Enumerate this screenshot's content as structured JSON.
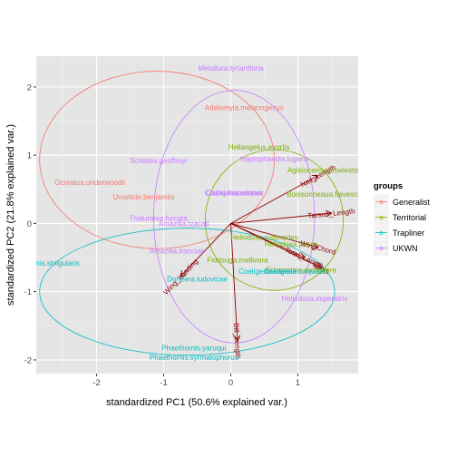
{
  "chart_data": {
    "type": "scatter",
    "subtype": "pca-biplot",
    "xlabel": "standardized PC1 (50.6% explained var.)",
    "ylabel": "standardized PC2 (21.8% explained var.)",
    "xlim": [
      -2.9,
      1.9
    ],
    "ylim": [
      -2.2,
      2.45
    ],
    "xticks": [
      -2,
      -1,
      0,
      1
    ],
    "yticks": [
      -2,
      -1,
      0,
      1,
      2
    ],
    "grid": true,
    "legend": {
      "title": "groups",
      "position": "right",
      "entries": [
        {
          "name": "Generalist",
          "color": "#F8766D"
        },
        {
          "name": "Territorial",
          "color": "#7CAE00"
        },
        {
          "name": "Trapliner",
          "color": "#00BFC4"
        },
        {
          "name": "UKWN",
          "color": "#C77CFF"
        }
      ]
    },
    "points": [
      {
        "label": "Metallura.tyrianthina",
        "group": "UKWN",
        "x": 0.0,
        "y": 2.28
      },
      {
        "label": "Adelomyia.melanogenys",
        "group": "Generalist",
        "x": 0.2,
        "y": 1.7
      },
      {
        "label": "Schistes.geoffroyi",
        "group": "UKWN",
        "x": -1.08,
        "y": 0.92
      },
      {
        "label": "Ocreatus.underwoodii",
        "group": "Generalist",
        "x": -2.1,
        "y": 0.6
      },
      {
        "label": "Urosticte.benjamini",
        "group": "Generalist",
        "x": -1.3,
        "y": 0.39
      },
      {
        "label": "Thalurania.furcata",
        "group": "UKWN",
        "x": -1.08,
        "y": 0.08
      },
      {
        "label": "Amazilia.tzacatl",
        "group": "UKWN",
        "x": -0.7,
        "y": 0.0
      },
      {
        "label": "Heliangelus.exortis",
        "group": "Territorial",
        "x": 0.42,
        "y": 1.12
      },
      {
        "label": "Aglaiocercus.coelestis",
        "group": "Territorial",
        "x": 1.38,
        "y": 0.78
      },
      {
        "label": "Haplophaedia.lugens",
        "group": "UKWN",
        "x": 0.65,
        "y": 0.95
      },
      {
        "label": "Coeligena.wilsoni",
        "group": "UKWN",
        "x": 0.05,
        "y": 0.45
      },
      {
        "label": "Colibri.thalassinus",
        "group": "UKWN",
        "x": 0.05,
        "y": 0.45
      },
      {
        "label": "Boissonneaua.flavescens",
        "group": "Territorial",
        "x": 1.45,
        "y": 0.43
      },
      {
        "label": "Amazilia.franciae",
        "group": "UKWN",
        "x": -0.8,
        "y": -0.4
      },
      {
        "label": "Heliodoxa.rubinoides",
        "group": "Territorial",
        "x": 0.5,
        "y": -0.2
      },
      {
        "label": "Heliodoxa.jacula",
        "group": "Territorial",
        "x": 0.9,
        "y": -0.3
      },
      {
        "label": "Florisuga.mellivora",
        "group": "Territorial",
        "x": 0.1,
        "y": -0.53
      },
      {
        "label": "Eriocnemis.mosquera",
        "group": "Territorial",
        "x": 1.05,
        "y": -0.68
      },
      {
        "label": "Coeligena.lutetiae",
        "group": "Trapliner",
        "x": 0.55,
        "y": -0.7
      },
      {
        "label": "Coeligena.torquata",
        "group": "Trapliner",
        "x": 0.95,
        "y": -0.7
      },
      {
        "label": "Phaethornis.striigularis",
        "group": "Trapliner",
        "x": -2.8,
        "y": -0.58
      },
      {
        "label": "Doryfera.ludovicae",
        "group": "Trapliner",
        "x": -0.5,
        "y": -0.81
      },
      {
        "label": "Heliodoxa.imperatrix",
        "group": "UKWN",
        "x": 1.25,
        "y": -1.1
      },
      {
        "label": "Phaethornis.yaruqui",
        "group": "Trapliner",
        "x": -0.55,
        "y": -1.82
      },
      {
        "label": "Phaethornis.syrmatophorus",
        "group": "Trapliner",
        "x": -0.55,
        "y": -1.96
      }
    ],
    "ellipses": [
      {
        "group": "Generalist",
        "cx": -1.1,
        "cy": 0.93,
        "rx": 1.75,
        "ry": 1.3
      },
      {
        "group": "Territorial",
        "cx": 0.65,
        "cy": 0.05,
        "rx": 1.03,
        "ry": 1.03
      },
      {
        "group": "Trapliner",
        "cx": -0.65,
        "cy": -1.0,
        "rx": 2.2,
        "ry": 0.93
      },
      {
        "group": "UKWN",
        "cx": 0.05,
        "cy": 0.1,
        "rx": 1.2,
        "ry": 1.85
      }
    ],
    "loadings": [
      {
        "name": "Nail_Length",
        "x": 1.3,
        "y": 0.7
      },
      {
        "name": "Tarsus_Length",
        "x": 1.5,
        "y": 0.15
      },
      {
        "name": "WingChord",
        "x": 1.3,
        "y": -0.35
      },
      {
        "name": "Total_Length",
        "x": 1.1,
        "y": -0.5
      },
      {
        "name": "Mass",
        "x": 1.35,
        "y": -0.65
      },
      {
        "name": "Wing_Loading",
        "x": -0.75,
        "y": -0.78
      },
      {
        "name": "Bill_Length",
        "x": 0.1,
        "y": -1.72
      }
    ]
  }
}
